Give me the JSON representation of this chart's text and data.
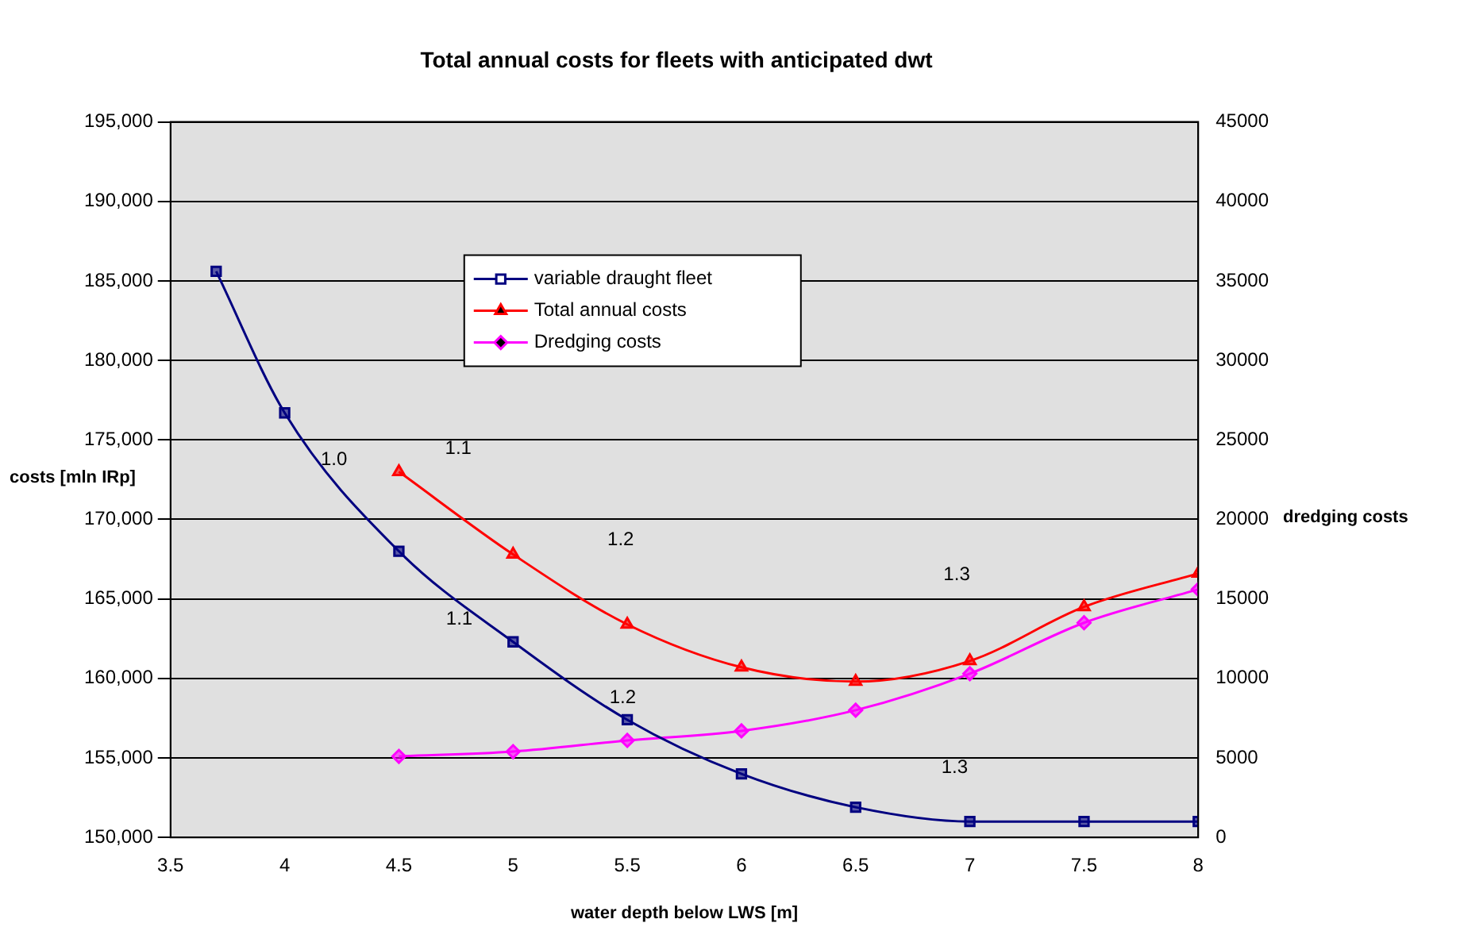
{
  "chart_data": {
    "type": "line",
    "title": "Total annual costs for fleets with anticipated dwt",
    "xlabel": "water depth below LWS [m]",
    "ylabel": "costs [mln IRp]",
    "y2label": "dredging costs",
    "xlim": [
      3.5,
      8
    ],
    "xticks": [
      3.5,
      4,
      4.5,
      5,
      5.5,
      6,
      6.5,
      7,
      7.5,
      8
    ],
    "ylim": [
      150000,
      195000
    ],
    "yticks": [
      {
        "value": 150000,
        "label": "150,000"
      },
      {
        "value": 155000,
        "label": "155,000"
      },
      {
        "value": 160000,
        "label": "160,000"
      },
      {
        "value": 165000,
        "label": "165,000"
      },
      {
        "value": 170000,
        "label": "170,000"
      },
      {
        "value": 175000,
        "label": "175,000"
      },
      {
        "value": 180000,
        "label": "180,000"
      },
      {
        "value": 185000,
        "label": "185,000"
      },
      {
        "value": 190000,
        "label": "190,000"
      },
      {
        "value": 195000,
        "label": "195,000"
      }
    ],
    "y2lim": [
      0,
      45000
    ],
    "y2ticks": [
      0,
      5000,
      10000,
      15000,
      20000,
      25000,
      30000,
      35000,
      40000,
      45000
    ],
    "grid": "y",
    "legend": "top left",
    "series": [
      {
        "name": "variable draught fleet",
        "color": "#000080",
        "marker": "square",
        "x": [
          3.7,
          4,
          4.5,
          5,
          5.5,
          6,
          6.5,
          7,
          7.5,
          8
        ],
        "values": [
          185600,
          176700,
          168000,
          162300,
          157400,
          154000,
          151900,
          151000,
          151000,
          151000
        ]
      },
      {
        "name": "Total annual costs",
        "color": "#ff0000",
        "marker": "triangle",
        "x": [
          4.5,
          5,
          5.5,
          6,
          6.5,
          7,
          7.5,
          8
        ],
        "values": [
          173000,
          167800,
          163400,
          160700,
          159800,
          161100,
          164500,
          166600
        ]
      },
      {
        "name": "Dredging costs",
        "color": "#ff00ff",
        "marker": "diamond",
        "axis": "y2",
        "x": [
          4.5,
          5,
          5.5,
          6,
          6.5,
          7,
          7.5,
          8
        ],
        "values": [
          5100,
          5400,
          6100,
          6700,
          8000,
          10300,
          13500,
          15600
        ]
      }
    ],
    "annotations": [
      "1.0",
      "1.1",
      "1.2",
      "1.3",
      "1.1",
      "1.2",
      "1.3"
    ]
  }
}
